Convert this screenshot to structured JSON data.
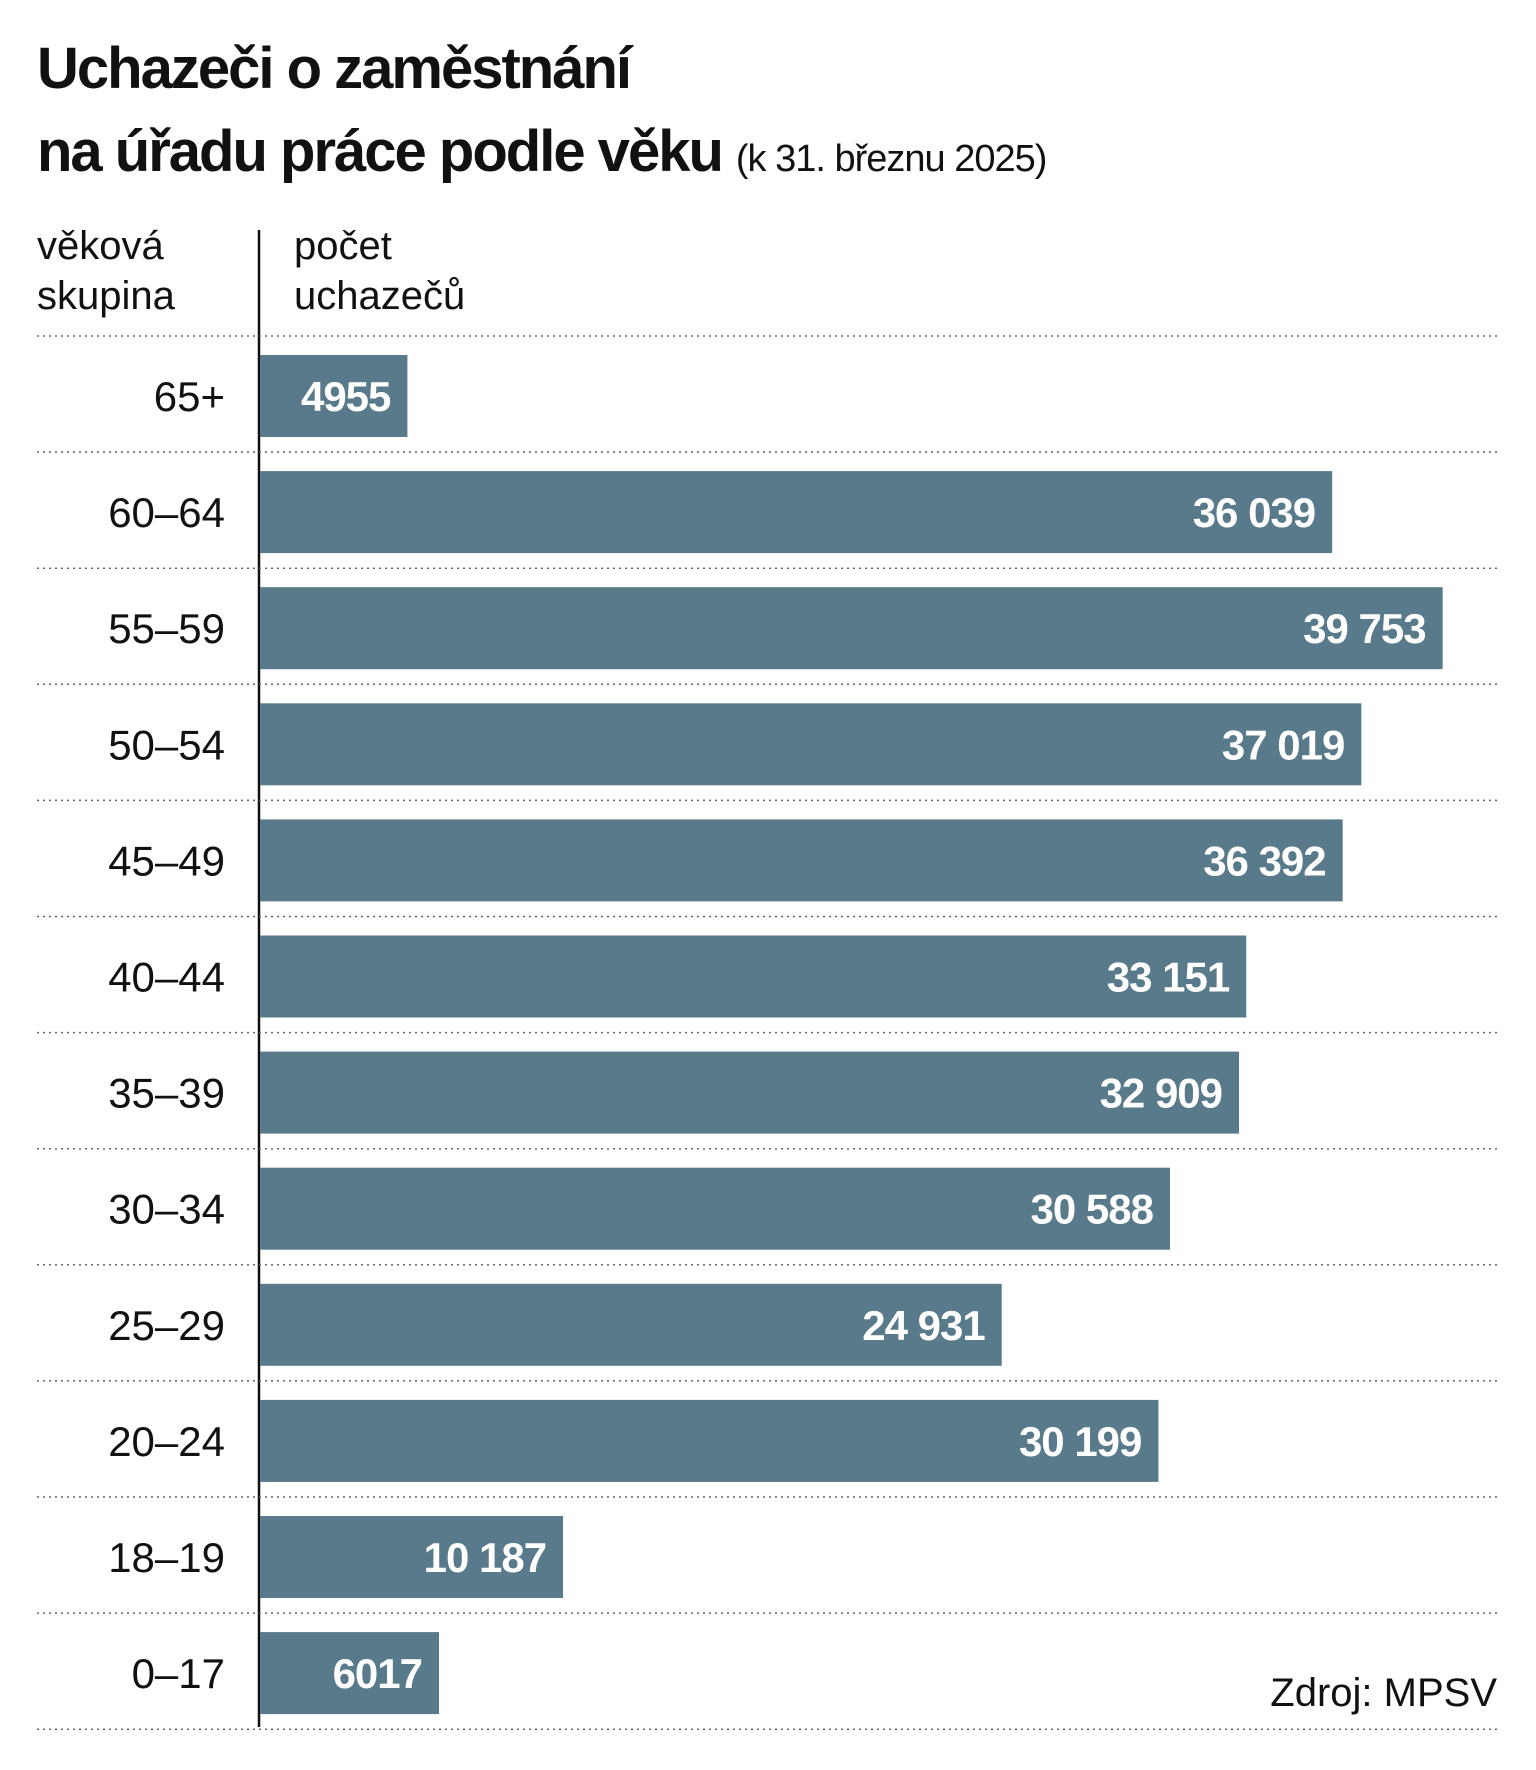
{
  "chart_data": {
    "type": "bar",
    "orientation": "horizontal",
    "title": [
      "Uchazeči o zaměstnání",
      "na úřadu práce podle věku"
    ],
    "subtitle": "(k 31. březnu 2025)",
    "y_label": [
      "věková",
      "skupina"
    ],
    "x_label": [
      "počet",
      "uchazečů"
    ],
    "categories": [
      "65+",
      "60–64",
      "55–59",
      "50–54",
      "45–49",
      "40–44",
      "35–39",
      "30–34",
      "25–29",
      "20–24",
      "18–19",
      "0–17"
    ],
    "values": [
      4955,
      36039,
      39753,
      37019,
      36392,
      33151,
      32909,
      30588,
      24931,
      30199,
      10187,
      6017
    ],
    "value_labels": [
      "4955",
      "36 039",
      "39 753",
      "37 019",
      "36 392",
      "33 151",
      "32 909",
      "30 588",
      "24 931",
      "30 199",
      "10 187",
      "6017"
    ],
    "color": "#587a8a",
    "source": "Zdroj: MPSV"
  }
}
